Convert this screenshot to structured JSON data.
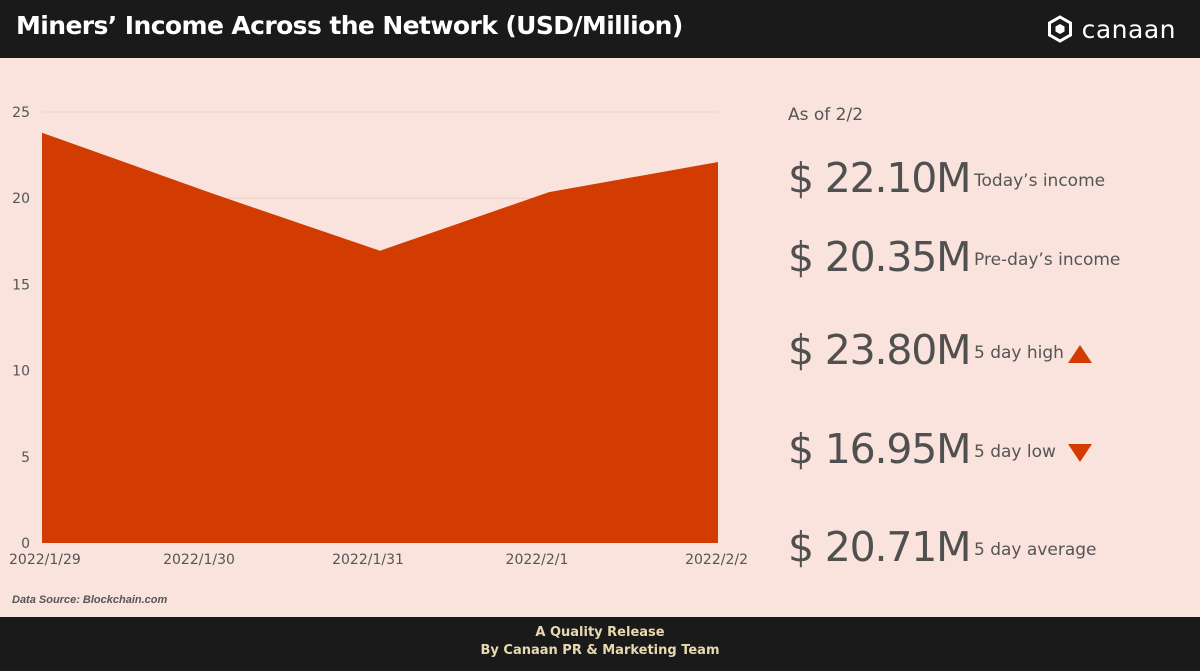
{
  "header": {
    "title": "Miners’ Income Across the Network (USD/Million)",
    "brand": "canaan"
  },
  "chart_data": {
    "type": "area",
    "title": "Miners’ Income Across the Network (USD/Million)",
    "x": [
      "2022/1/29",
      "2022/1/30",
      "2022/1/31",
      "2022/2/1",
      "2022/2/2"
    ],
    "values": [
      23.8,
      20.3,
      16.95,
      20.35,
      22.1
    ],
    "yticks": [
      0,
      5,
      10,
      15,
      20,
      25
    ],
    "ylim": [
      0,
      25
    ],
    "grid": true,
    "color": "#d23c00"
  },
  "source": "Data Source: Blockchain.com",
  "stats": {
    "as_of": "As of 2/2",
    "items": [
      {
        "value": "$ 22.10M",
        "label": "Today’s income"
      },
      {
        "value": "$ 20.35M",
        "label": "Pre-day’s income"
      },
      {
        "value": "$ 23.80M",
        "label": "5 day high",
        "indicator": "up-triangle-icon"
      },
      {
        "value": "$ 16.95M",
        "label": "5 day low",
        "indicator": "down-triangle-icon"
      },
      {
        "value": "$ 20.71M",
        "label": "5 day average"
      }
    ]
  },
  "footer": {
    "line1": "A Quality Release",
    "line2": "By Canaan PR & Marketing Team"
  },
  "colors": {
    "accent": "#d23c00",
    "background": "#f9e3dc",
    "header_bg": "#1a1a1a",
    "footer_text": "#e8d9b0"
  }
}
